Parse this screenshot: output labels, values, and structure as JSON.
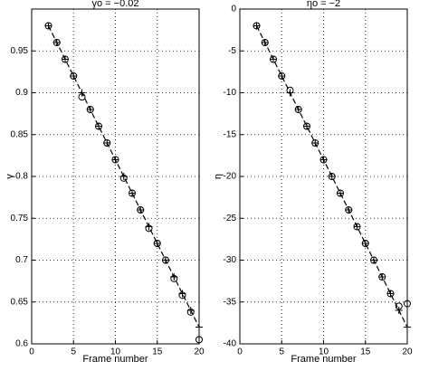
{
  "chart_data": [
    {
      "type": "line",
      "title": "γo = −0.02",
      "xlabel": "Frame number",
      "ylabel": "γ",
      "x": [
        2,
        3,
        4,
        5,
        6,
        7,
        8,
        9,
        10,
        11,
        12,
        13,
        14,
        15,
        16,
        17,
        18,
        19,
        20
      ],
      "series": [
        {
          "marker": "circle",
          "color": "#000000",
          "values": [
            0.98,
            0.96,
            0.94,
            0.92,
            0.895,
            0.88,
            0.86,
            0.84,
            0.82,
            0.798,
            0.78,
            0.76,
            0.738,
            0.72,
            0.7,
            0.678,
            0.658,
            0.638,
            0.605
          ]
        },
        {
          "marker": "plus",
          "linestyle": "dashed",
          "color": "#000000",
          "values": [
            0.98,
            0.96,
            0.94,
            0.92,
            0.9,
            0.88,
            0.86,
            0.84,
            0.82,
            0.8,
            0.78,
            0.76,
            0.74,
            0.72,
            0.7,
            0.68,
            0.66,
            0.64,
            0.62
          ]
        }
      ],
      "xlim": [
        0,
        20
      ],
      "xticks": [
        0,
        5,
        10,
        15,
        20
      ],
      "ylim": [
        0.6,
        1
      ],
      "yticks": [
        0.6,
        0.65,
        0.7,
        0.75,
        0.8,
        0.85,
        0.9,
        0.95
      ],
      "grid": true
    },
    {
      "type": "line",
      "title": "ηo = −2",
      "xlabel": "Frame number",
      "ylabel": "η",
      "x": [
        2,
        3,
        4,
        5,
        6,
        7,
        8,
        9,
        10,
        11,
        12,
        13,
        14,
        15,
        16,
        17,
        18,
        19,
        20
      ],
      "series": [
        {
          "marker": "circle",
          "color": "#000000",
          "values": [
            -2,
            -4,
            -6,
            -8,
            -9.7,
            -12,
            -14,
            -16,
            -18,
            -20,
            -22,
            -24,
            -26,
            -28,
            -30,
            -32,
            -34,
            -35.5,
            -35.2
          ]
        },
        {
          "marker": "plus",
          "linestyle": "dashed",
          "color": "#000000",
          "values": [
            -2,
            -4,
            -6,
            -8,
            -10,
            -12,
            -14,
            -16,
            -18,
            -20,
            -22,
            -24,
            -26,
            -28,
            -30,
            -32,
            -34,
            -36,
            -38
          ]
        }
      ],
      "xlim": [
        0,
        20
      ],
      "xticks": [
        0,
        5,
        10,
        15,
        20
      ],
      "ylim": [
        -40,
        0
      ],
      "yticks": [
        0,
        -5,
        -10,
        -15,
        -20,
        -25,
        -30,
        -35,
        -40
      ],
      "grid": true
    }
  ]
}
